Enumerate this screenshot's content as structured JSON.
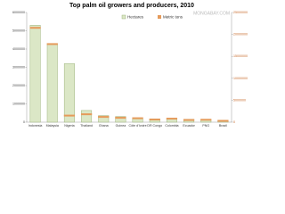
{
  "chart_data": {
    "type": "bar",
    "title": "Top palm oil growers and producers, 2010",
    "watermark": "MONGABAY.COM",
    "categories": [
      "Indonesia",
      "Malaysia",
      "Nigeria",
      "Thailand",
      "Ghana",
      "Guinea",
      "Côte d'Ivoire",
      "DR Congo",
      "Colombia",
      "Ecuador",
      "PNG",
      "Brazil"
    ],
    "series": [
      {
        "name": "Hectares",
        "color": "#dbe7c6",
        "values": [
          5300000,
          4300000,
          3200000,
          640000,
          360000,
          310000,
          220000,
          180000,
          170000,
          160000,
          130000,
          110000
        ]
      },
      {
        "name": "Metric tons",
        "color": "#e59a5a",
        "axis": "y2",
        "values": [
          21500000,
          17800000,
          1500000,
          1800000,
          1200000,
          1000000,
          900000,
          600000,
          800000,
          500000,
          550000,
          300000
        ]
      }
    ],
    "ylim": [
      0,
      6000000
    ],
    "yticks": [
      0,
      1000000,
      2000000,
      3000000,
      4000000,
      5000000,
      6000000
    ],
    "y2lim": [
      0,
      25000000
    ],
    "y2ticks": [
      0,
      5000000,
      10000000,
      15000000,
      20000000,
      25000000
    ],
    "legend": "top"
  }
}
